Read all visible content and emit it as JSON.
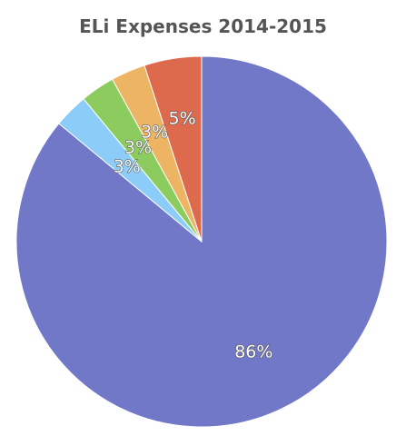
{
  "chart_data": {
    "type": "pie",
    "title": "ELi Expenses 2014-2015",
    "slices": [
      {
        "value": 86,
        "label": "86%",
        "color": "#7278c8"
      },
      {
        "value": 3,
        "label": "3%",
        "color": "#8bcdf8"
      },
      {
        "value": 3,
        "label": "3%",
        "color": "#8ccb5e"
      },
      {
        "value": 3,
        "label": "3%",
        "color": "#ecb463"
      },
      {
        "value": 5,
        "label": "5%",
        "color": "#de6a4e"
      }
    ]
  }
}
